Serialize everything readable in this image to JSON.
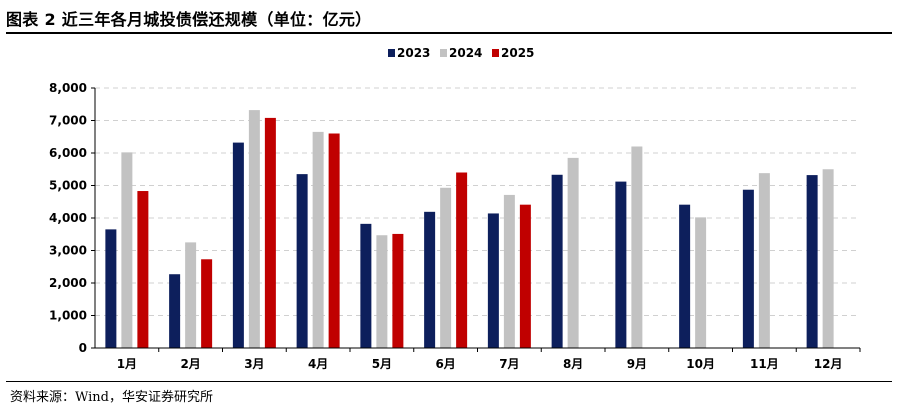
{
  "title": "图表 2 近三年各月城投债偿还规模（单位：亿元）",
  "source": "资料来源：Wind，华安证券研究所",
  "chart_data": {
    "type": "bar",
    "title": "图表 2 近三年各月城投债偿还规模（单位：亿元）",
    "xlabel": "",
    "ylabel": "",
    "categories": [
      "1月",
      "2月",
      "3月",
      "4月",
      "5月",
      "6月",
      "7月",
      "8月",
      "9月",
      "10月",
      "11月",
      "12月"
    ],
    "series": [
      {
        "name": "2023",
        "color": "#0d1f5c",
        "values": [
          3650,
          2270,
          6320,
          5350,
          3820,
          4190,
          4140,
          5330,
          5120,
          4410,
          4870,
          5320
        ]
      },
      {
        "name": "2024",
        "color": "#c2c2c2",
        "values": [
          6020,
          3250,
          7320,
          6650,
          3470,
          4930,
          4710,
          5850,
          6200,
          4020,
          5380,
          5500
        ]
      },
      {
        "name": "2025",
        "color": "#c00000",
        "values": [
          4830,
          2730,
          7080,
          6600,
          3510,
          5400,
          4410,
          null,
          null,
          null,
          null,
          null
        ]
      }
    ],
    "ylim": [
      0,
      8000
    ],
    "yticks": [
      0,
      1000,
      2000,
      3000,
      4000,
      5000,
      6000,
      7000,
      8000
    ],
    "ytick_labels": [
      "0",
      "1,000",
      "2,000",
      "3,000",
      "4,000",
      "5,000",
      "6,000",
      "7,000",
      "8,000"
    ],
    "grid": true,
    "legend_position": "top-center"
  }
}
